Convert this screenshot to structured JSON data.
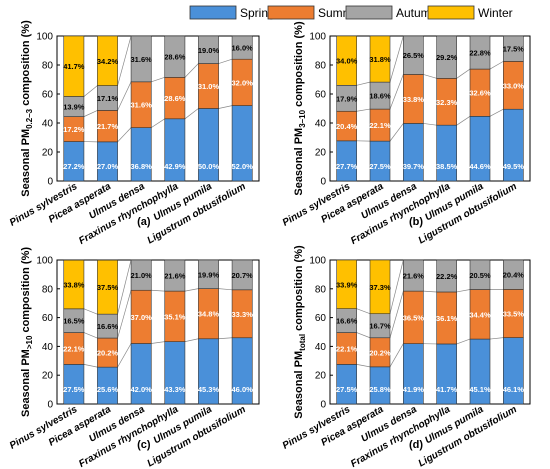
{
  "legend": [
    {
      "name": "Spring",
      "color": "#4a90d9"
    },
    {
      "name": "Summer",
      "color": "#ed7d31"
    },
    {
      "name": "Autumn",
      "color": "#a5a5a5"
    },
    {
      "name": "Winter",
      "color": "#ffc000"
    }
  ],
  "chart_data": [
    {
      "type": "bar",
      "stacked": true,
      "panel_label": "(a)",
      "ylabel_main": "Seasonal PM",
      "ylabel_sub": "0.2–3",
      "ylabel_suffix": " composition (%)",
      "ylim": [
        0,
        100
      ],
      "yticks": [
        "0",
        "20",
        "40",
        "60",
        "80",
        "100"
      ],
      "categories": [
        "Pinus sylvestris",
        "Picea asperata",
        "Ulmus densa",
        "Fraxinus rhynchophylla",
        "Ulmus pumila",
        "Ligustrum obtusifolium"
      ],
      "series": [
        {
          "name": "Spring",
          "values": [
            27.2,
            27.0,
            36.8,
            42.9,
            50.0,
            52.0
          ],
          "labels": [
            "27.2%",
            "27.0%",
            "36.8%",
            "42.9%",
            "50.0%",
            "52.0%"
          ]
        },
        {
          "name": "Summer",
          "values": [
            17.2,
            21.7,
            31.6,
            28.6,
            31.0,
            32.0
          ],
          "labels": [
            "17.2%",
            "21.7%",
            "31.6%",
            "28.6%",
            "31.0%",
            "32.0%"
          ]
        },
        {
          "name": "Autumn",
          "values": [
            13.9,
            17.1,
            31.6,
            28.6,
            19.0,
            16.0
          ],
          "labels": [
            "13.9%",
            "17.1%",
            "31.6%",
            "28.6%",
            "19.0%",
            "16.0%"
          ]
        },
        {
          "name": "Winter",
          "values": [
            41.7,
            34.2,
            0,
            0,
            0,
            0
          ],
          "labels": [
            "41.7%",
            "34.2%",
            "",
            "",
            "",
            ""
          ]
        }
      ]
    },
    {
      "type": "bar",
      "stacked": true,
      "panel_label": "(b)",
      "ylabel_main": "Seasonal PM",
      "ylabel_sub": "3–10",
      "ylabel_suffix": " composition (%)",
      "ylim": [
        0,
        100
      ],
      "yticks": [
        "0",
        "20",
        "40",
        "60",
        "80",
        "100"
      ],
      "categories": [
        "Pinus sylvestris",
        "Picea asperata",
        "Ulmus densa",
        "Fraxinus rhynchophylla",
        "Ulmus pumila",
        "Ligustrum obtusifolium"
      ],
      "series": [
        {
          "name": "Spring",
          "values": [
            27.7,
            27.5,
            39.7,
            38.5,
            44.6,
            49.5
          ],
          "labels": [
            "27.7%",
            "27.5%",
            "39.7%",
            "38.5%",
            "44.6%",
            "49.5%"
          ]
        },
        {
          "name": "Summer",
          "values": [
            20.4,
            22.1,
            33.8,
            32.3,
            32.6,
            33.0
          ],
          "labels": [
            "20.4%",
            "22.1%",
            "33.8%",
            "32.3%",
            "32.6%",
            "33.0%"
          ]
        },
        {
          "name": "Autumn",
          "values": [
            17.9,
            18.6,
            26.5,
            29.2,
            22.8,
            17.5
          ],
          "labels": [
            "17.9%",
            "18.6%",
            "26.5%",
            "29.2%",
            "22.8%",
            "17.5%"
          ]
        },
        {
          "name": "Winter",
          "values": [
            34.0,
            31.8,
            0,
            0,
            0,
            0
          ],
          "labels": [
            "34.0%",
            "31.8%",
            "",
            "",
            "",
            ""
          ]
        }
      ]
    },
    {
      "type": "bar",
      "stacked": true,
      "panel_label": "(c)",
      "ylabel_main": "Seasonal PM",
      "ylabel_sub": ">10",
      "ylabel_suffix": " composition (%)",
      "ylim": [
        0,
        100
      ],
      "yticks": [
        "0",
        "20",
        "40",
        "60",
        "80",
        "100"
      ],
      "categories": [
        "Pinus sylvestris",
        "Picea asperata",
        "Ulmus densa",
        "Fraxinus rhynchophylla",
        "Ulmus pumila",
        "Ligustrum obtusifolium"
      ],
      "series": [
        {
          "name": "Spring",
          "values": [
            27.5,
            25.6,
            42.0,
            43.3,
            45.3,
            46.0
          ],
          "labels": [
            "27.5%",
            "25.6%",
            "42.0%",
            "43.3%",
            "45.3%",
            "46.0%"
          ]
        },
        {
          "name": "Summer",
          "values": [
            22.1,
            20.2,
            37.0,
            35.1,
            34.8,
            33.3
          ],
          "labels": [
            "22.1%",
            "20.2%",
            "37.0%",
            "35.1%",
            "34.8%",
            "33.3%"
          ]
        },
        {
          "name": "Autumn",
          "values": [
            16.5,
            16.6,
            21.0,
            21.6,
            19.9,
            20.7
          ],
          "labels": [
            "16.5%",
            "16.6%",
            "21.0%",
            "21.6%",
            "19.9%",
            "20.7%"
          ]
        },
        {
          "name": "Winter",
          "values": [
            33.8,
            37.5,
            0,
            0,
            0,
            0
          ],
          "labels": [
            "33.8%",
            "37.5%",
            "",
            "",
            "",
            ""
          ]
        }
      ]
    },
    {
      "type": "bar",
      "stacked": true,
      "panel_label": "(d)",
      "ylabel_main": "Seasonal PM",
      "ylabel_sub": "total",
      "ylabel_suffix": " composition (%)",
      "ylim": [
        0,
        100
      ],
      "yticks": [
        "0",
        "20",
        "40",
        "60",
        "80",
        "100"
      ],
      "categories": [
        "Pinus sylvestris",
        "Picea asperata",
        "Ulmus densa",
        "Fraxinus rhynchophylla",
        "Ulmus pumila",
        "Ligustrum obtusifolium"
      ],
      "series": [
        {
          "name": "Spring",
          "values": [
            27.5,
            25.8,
            41.9,
            41.7,
            45.1,
            46.1
          ],
          "labels": [
            "27.5%",
            "25.8%",
            "41.9%",
            "41.7%",
            "45.1%",
            "46.1%"
          ]
        },
        {
          "name": "Summer",
          "values": [
            22.1,
            20.2,
            36.5,
            36.1,
            34.4,
            33.5
          ],
          "labels": [
            "22.1%",
            "20.2%",
            "36.5%",
            "36.1%",
            "34.4%",
            "33.5%"
          ]
        },
        {
          "name": "Autumn",
          "values": [
            16.6,
            16.7,
            21.6,
            22.2,
            20.5,
            20.4
          ],
          "labels": [
            "16.6%",
            "16.7%",
            "21.6%",
            "22.2%",
            "20.5%",
            "20.4%"
          ]
        },
        {
          "name": "Winter",
          "values": [
            33.9,
            37.3,
            0,
            0,
            0,
            0
          ],
          "labels": [
            "33.9%",
            "37.3%",
            "",
            "",
            "",
            ""
          ]
        }
      ]
    }
  ]
}
